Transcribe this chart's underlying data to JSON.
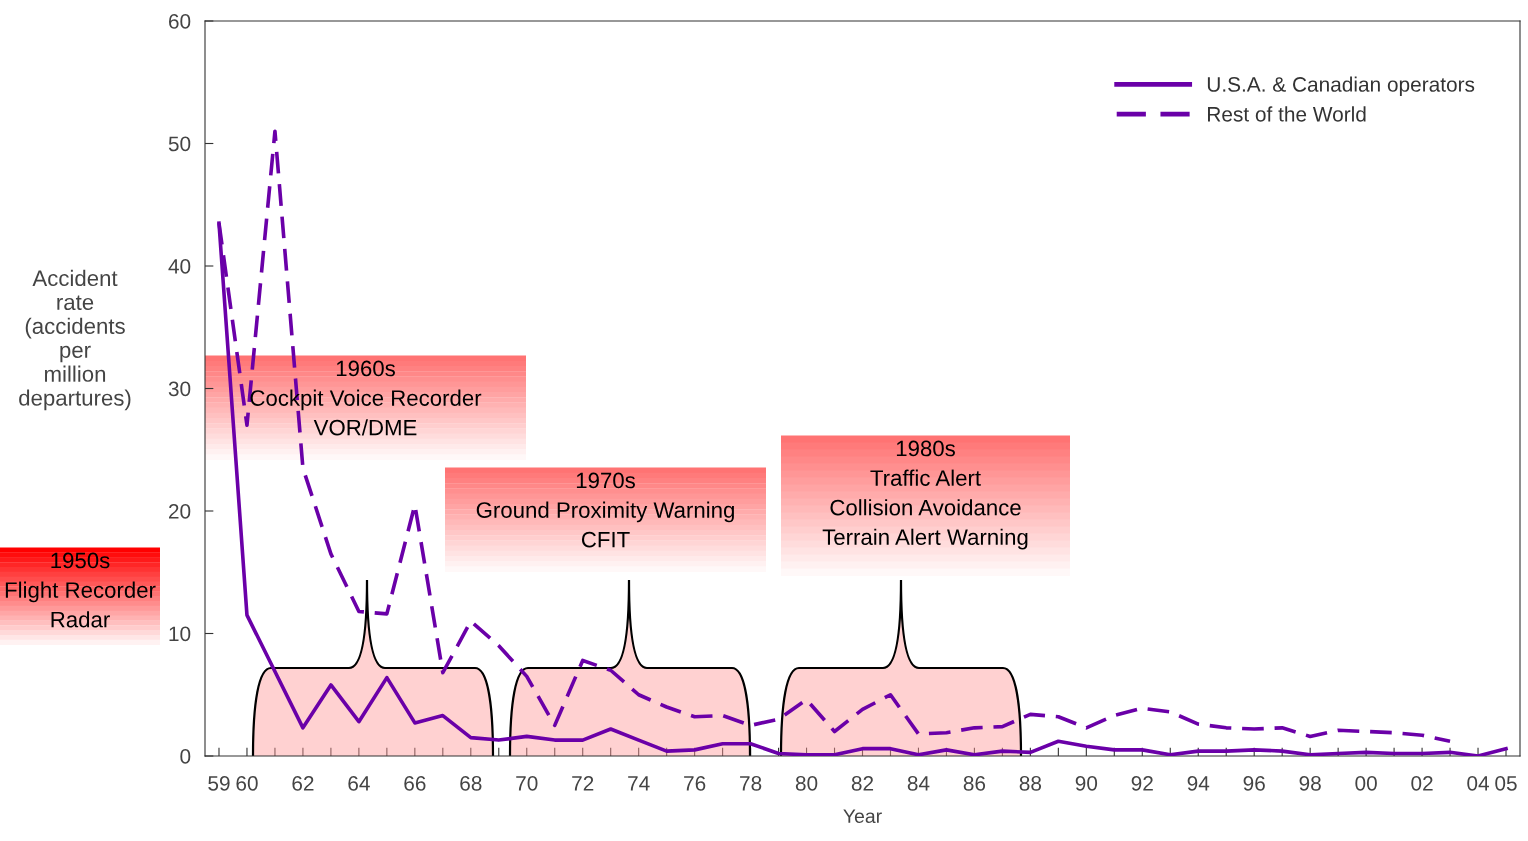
{
  "chart_data": {
    "type": "line",
    "xlabel": "Year",
    "ylabel": "Accident\nrate\n(accidents\nper\nmillion\ndepartures)",
    "x": [
      1959,
      1960,
      1961,
      1962,
      1963,
      1964,
      1965,
      1966,
      1967,
      1968,
      1969,
      1970,
      1971,
      1972,
      1973,
      1974,
      1975,
      1976,
      1977,
      1978,
      1979,
      1980,
      1981,
      1982,
      1983,
      1984,
      1985,
      1986,
      1987,
      1988,
      1989,
      1990,
      1991,
      1992,
      1993,
      1994,
      1995,
      1996,
      1997,
      1998,
      1999,
      2000,
      2001,
      2002,
      2003,
      2004,
      2005
    ],
    "series": [
      {
        "name": "U.S.A. & Canadian operators",
        "color": "#6a00a8",
        "line_style": "solid",
        "values": [
          43.5,
          11.5,
          6.9,
          2.3,
          5.8,
          2.8,
          6.4,
          2.7,
          3.3,
          1.5,
          1.3,
          1.6,
          1.3,
          1.3,
          2.2,
          1.3,
          0.4,
          0.5,
          1.0,
          1.0,
          0.2,
          0.1,
          0.1,
          0.6,
          0.6,
          0.1,
          0.5,
          0.1,
          0.4,
          0.3,
          1.2,
          0.8,
          0.5,
          0.5,
          0.1,
          0.4,
          0.4,
          0.5,
          0.4,
          0.1,
          0.2,
          0.3,
          0.2,
          0.2,
          0.3,
          0.0,
          0.6
        ]
      },
      {
        "name": "Rest of the World",
        "color": "#6a00a8",
        "line_style": "dashed",
        "values": [
          43.5,
          27.0,
          51.0,
          23.5,
          16.5,
          11.8,
          11.6,
          20.5,
          6.8,
          11.0,
          9.0,
          6.5,
          2.5,
          7.8,
          7.0,
          5.0,
          4.0,
          3.2,
          3.3,
          2.5,
          3.0,
          4.6,
          2.0,
          3.8,
          5.0,
          1.8,
          1.9,
          2.3,
          2.4,
          3.4,
          3.2,
          2.3,
          3.3,
          3.9,
          3.6,
          2.6,
          2.3,
          2.2,
          2.3,
          1.6,
          2.1,
          2.0,
          1.9,
          1.7,
          1.2,
          null,
          null
        ]
      }
    ],
    "xlim": [
      1958.5,
      2005.5
    ],
    "xticks": [
      {
        "value": 1959,
        "label": "59"
      },
      {
        "value": 1960,
        "label": "60"
      },
      {
        "value": 1961,
        "label": null
      },
      {
        "value": 1962,
        "label": "62"
      },
      {
        "value": 1963,
        "label": null
      },
      {
        "value": 1964,
        "label": "64"
      },
      {
        "value": 1965,
        "label": null
      },
      {
        "value": 1966,
        "label": "66"
      },
      {
        "value": 1967,
        "label": null
      },
      {
        "value": 1968,
        "label": "68"
      },
      {
        "value": 1969,
        "label": null
      },
      {
        "value": 1970,
        "label": "70"
      },
      {
        "value": 1971,
        "label": null
      },
      {
        "value": 1972,
        "label": "72"
      },
      {
        "value": 1973,
        "label": null
      },
      {
        "value": 1974,
        "label": "74"
      },
      {
        "value": 1975,
        "label": null
      },
      {
        "value": 1976,
        "label": "76"
      },
      {
        "value": 1977,
        "label": null
      },
      {
        "value": 1978,
        "label": "78"
      },
      {
        "value": 1979,
        "label": null
      },
      {
        "value": 1980,
        "label": "80"
      },
      {
        "value": 1981,
        "label": null
      },
      {
        "value": 1982,
        "label": "82"
      },
      {
        "value": 1983,
        "label": null
      },
      {
        "value": 1984,
        "label": "84"
      },
      {
        "value": 1985,
        "label": null
      },
      {
        "value": 1986,
        "label": "86"
      },
      {
        "value": 1987,
        "label": null
      },
      {
        "value": 1988,
        "label": "88"
      },
      {
        "value": 1989,
        "label": null
      },
      {
        "value": 1990,
        "label": "90"
      },
      {
        "value": 1991,
        "label": null
      },
      {
        "value": 1992,
        "label": "92"
      },
      {
        "value": 1993,
        "label": null
      },
      {
        "value": 1994,
        "label": "94"
      },
      {
        "value": 1995,
        "label": null
      },
      {
        "value": 1996,
        "label": "96"
      },
      {
        "value": 1997,
        "label": null
      },
      {
        "value": 1998,
        "label": "98"
      },
      {
        "value": 1999,
        "label": null
      },
      {
        "value": 2000,
        "label": "00"
      },
      {
        "value": 2001,
        "label": null
      },
      {
        "value": 2002,
        "label": "02"
      },
      {
        "value": 2003,
        "label": null
      },
      {
        "value": 2004,
        "label": "04"
      },
      {
        "value": 2005,
        "label": "05"
      }
    ],
    "ylim": [
      0,
      60
    ],
    "yticks": [
      0,
      10,
      20,
      30,
      40,
      50,
      60
    ],
    "grid": false,
    "legend": "top right",
    "marker": "none",
    "annotations": [
      "1950s\nFlight Recorder\nRadar",
      "1960s\nCockpit Voice Recorder\nVOR/DME",
      "1970s\nGround Proximity Warning\nCFIT",
      "1980s\nTraffic Alert\nCollision Avoidance\nTerrain Alert Warning"
    ]
  }
}
